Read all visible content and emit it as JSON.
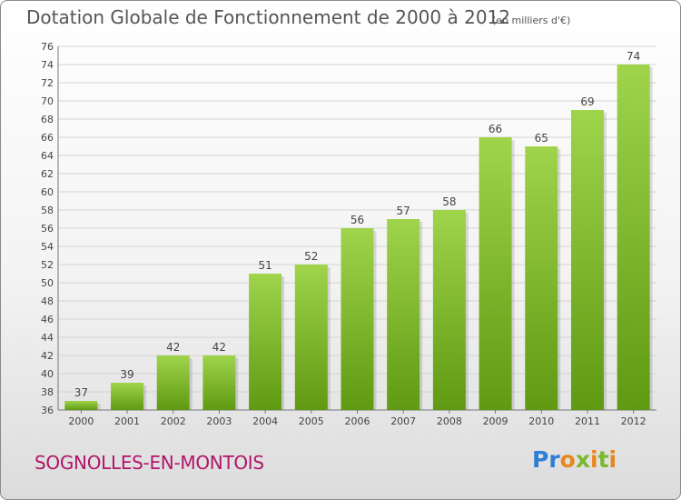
{
  "header": {
    "title": "Dotation Globale de Fonctionnement de 2000 à 2012",
    "unit_note": "(en milliers d'€)"
  },
  "footer": {
    "commune": "SOGNOLLES-EN-MONTOIS",
    "logo_text": "Proxiti",
    "logo_colors": [
      "#2b7fd6",
      "#2b7fd6",
      "#e8871e",
      "#7ab82d",
      "#e8871e",
      "#7ab82d",
      "#e8871e"
    ]
  },
  "chart_data": {
    "type": "bar",
    "title": "Dotation Globale de Fonctionnement de 2000 à 2012",
    "subtitle": "(en milliers d'€)",
    "categories": [
      "2000",
      "2001",
      "2002",
      "2003",
      "2004",
      "2005",
      "2006",
      "2007",
      "2008",
      "2009",
      "2010",
      "2011",
      "2012"
    ],
    "values": [
      37,
      39,
      42,
      42,
      51,
      52,
      56,
      57,
      58,
      66,
      65,
      69,
      74
    ],
    "ylim": [
      36,
      76
    ],
    "ytick_step": 2,
    "grid": true,
    "bar_color_top": "#9fd44b",
    "bar_color_bottom": "#5f9a12"
  }
}
